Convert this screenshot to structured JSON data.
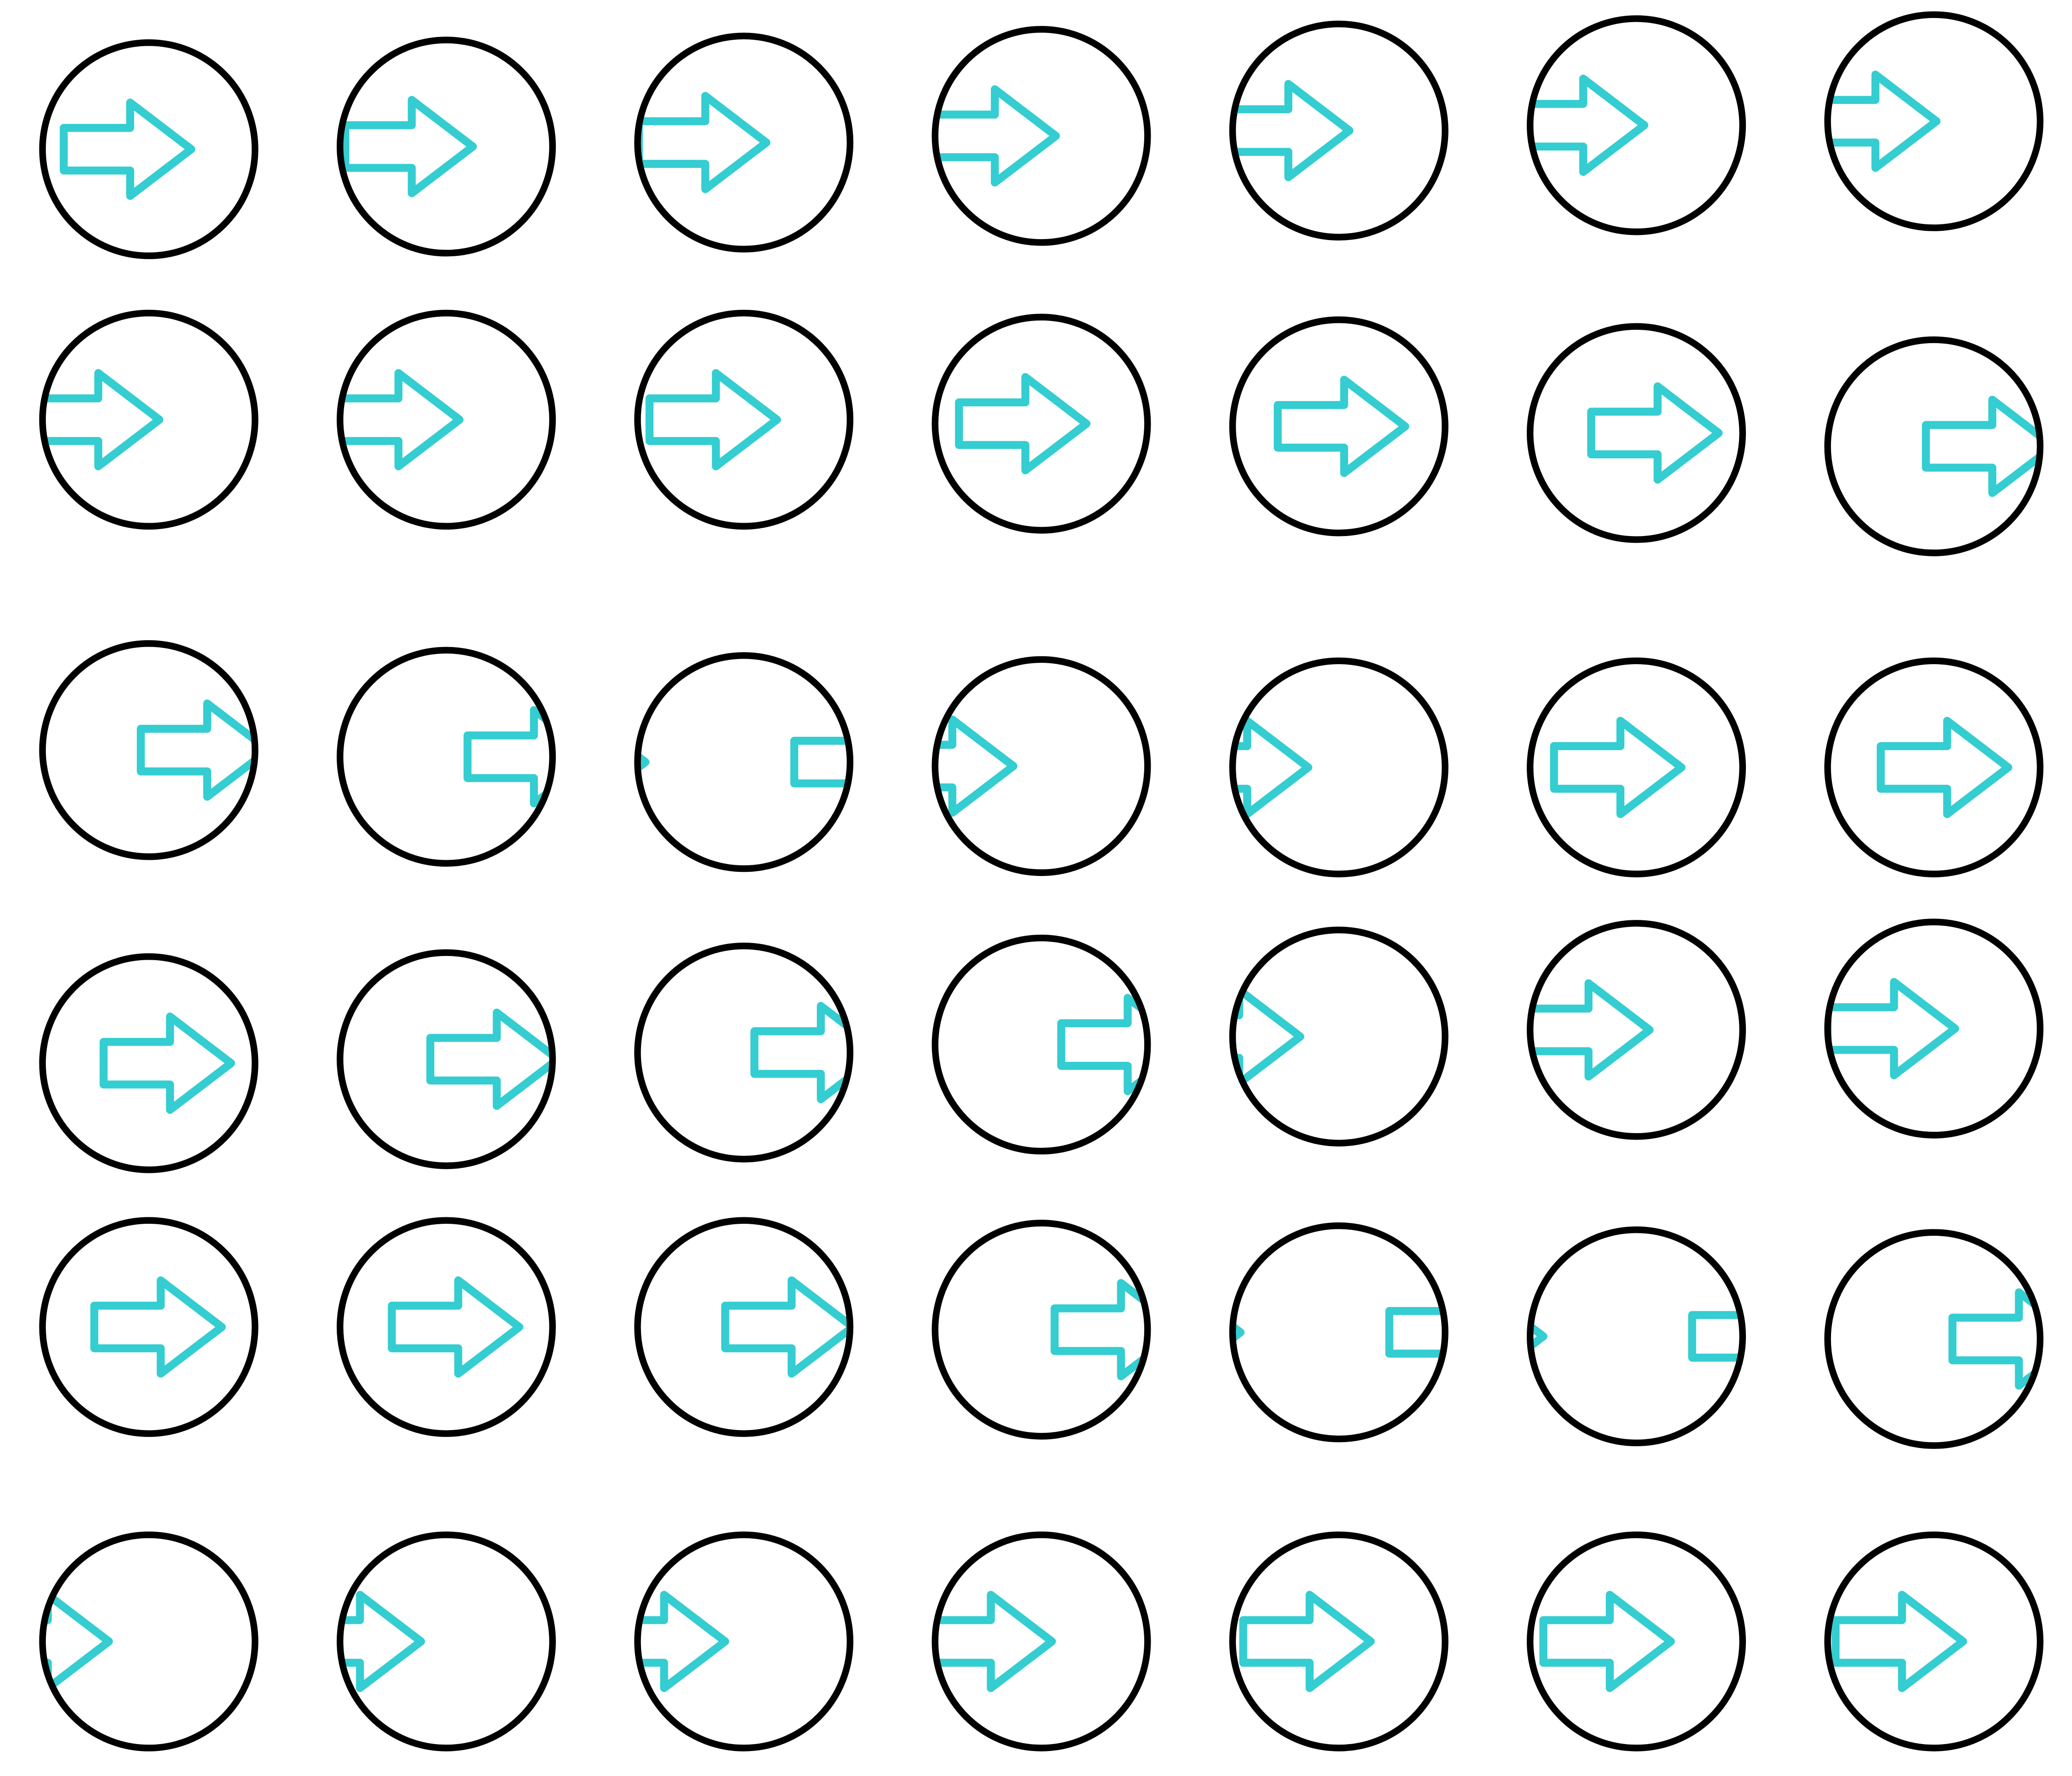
{
  "sheet": {
    "type": "animation-frames",
    "frame_count": 42,
    "frames_per_row": 7,
    "icon": "arrow-right-in-circle-icon",
    "arrow_colour": "#34CDD1",
    "circle_colour": "#000000",
    "background_colour": "#FFFFFF"
  }
}
